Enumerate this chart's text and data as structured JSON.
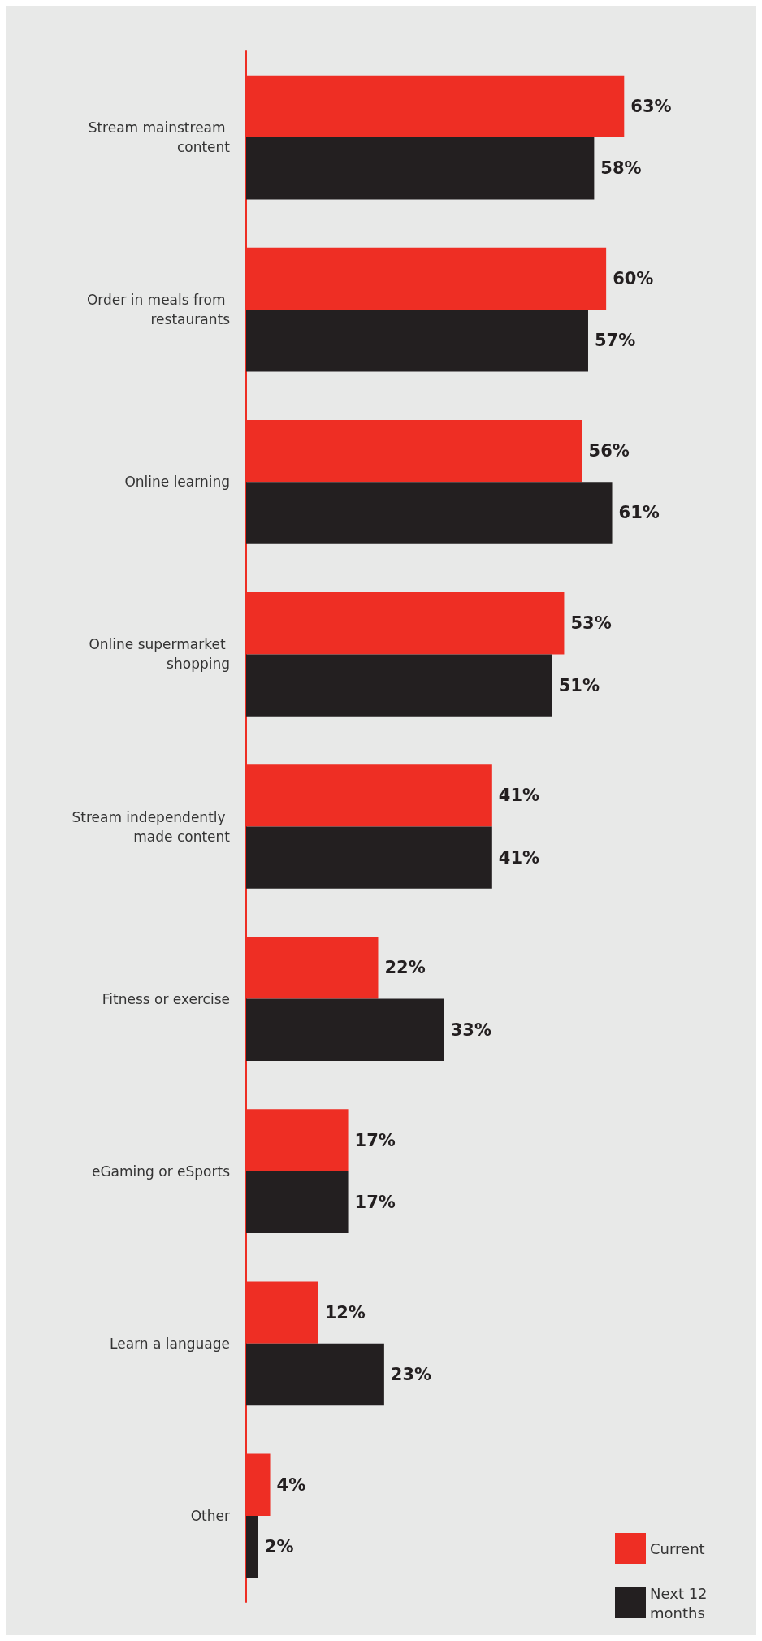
{
  "chart_data": {
    "type": "bar",
    "orientation": "horizontal",
    "categories": [
      "Stream mainstream content",
      "Order in meals from restaurants",
      "Online learning",
      "Online supermarket shopping",
      "Stream independently made content",
      "Fitness or exercise",
      "eGaming or eSports",
      "Learn a language",
      "Other"
    ],
    "series": [
      {
        "name": "Current",
        "color": "#ee2e24",
        "values": [
          63,
          60,
          56,
          53,
          41,
          22,
          17,
          12,
          4
        ],
        "value_labels": [
          "63%",
          "60%",
          "56%",
          "53%",
          "41%",
          "22%",
          "17%",
          "12%",
          "4%"
        ]
      },
      {
        "name": "Next 12 months",
        "color": "#231f20",
        "values": [
          58,
          57,
          61,
          51,
          41,
          33,
          17,
          23,
          2
        ],
        "value_labels": [
          "58%",
          "57%",
          "61%",
          "51%",
          "41%",
          "33%",
          "17%",
          "23%",
          "2%"
        ]
      }
    ],
    "legend": "bottom right"
  }
}
